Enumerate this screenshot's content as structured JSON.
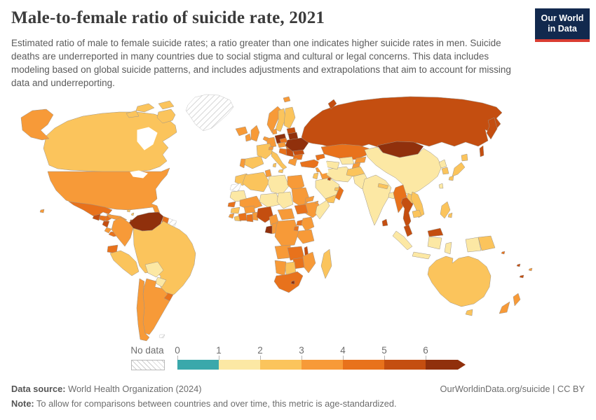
{
  "header": {
    "title": "Male-to-female ratio of suicide rate, 2021",
    "subtitle": "Estimated ratio of male to female suicide rates; a ratio greater than one indicates higher suicide rates in men. Suicide deaths are underreported in many countries due to social stigma and cultural or legal concerns. This data includes modeling based on global suicide patterns, and includes adjustments and extrapolations that aim to account for missing data and underreporting.",
    "logo": {
      "line1": "Our World",
      "line2": "in Data",
      "bg_color": "#12294e",
      "accent_color": "#d93d32"
    }
  },
  "legend": {
    "no_data_label": "No data",
    "ticks": [
      "0",
      "1",
      "2",
      "3",
      "4",
      "5",
      "6"
    ],
    "colors": [
      "#3aa8ab",
      "#fce8a4",
      "#fbc45c",
      "#f79a38",
      "#e8721c",
      "#c44e10",
      "#90300c"
    ],
    "tick_color": "#6e6e6e"
  },
  "footer": {
    "source_label": "Data source:",
    "source_text": "World Health Organization (2024)",
    "link_text": "OurWorldinData.org/suicide | CC BY",
    "note_label": "Note:",
    "note_text": "To allow for comparisons between countries and over time, this metric is age-standardized."
  },
  "chart_data": {
    "type": "choropleth_map",
    "title": "Male-to-female ratio of suicide rate, 2021",
    "year": 2021,
    "unit": "ratio of male to female suicide rate",
    "bin_edges": [
      0,
      1,
      2,
      3,
      4,
      5,
      6
    ],
    "bin_labels": [
      "0-1",
      "1-2",
      "2-3",
      "3-4",
      "4-5",
      "5-6",
      "6+"
    ],
    "legend_no_data": "hatched",
    "regions": {
      "United States": 3,
      "Canada": 2,
      "Mexico": 4,
      "Guatemala": 5,
      "Honduras": 4,
      "Nicaragua": 5,
      "Costa Rica": 3,
      "Panama": 4,
      "Cuba": 3,
      "Jamaica": 2,
      "Haiti": 5,
      "Dominican Republic": 3,
      "Puerto Rico": 3,
      "Bahamas": 2,
      "Lesser Antilles": 5,
      "Trinidad and Tobago": 3,
      "Venezuela": 6,
      "Guyana": 4,
      "Colombia": 3,
      "Ecuador": 4,
      "Peru": 2,
      "Brazil": 2,
      "Bolivia": 1,
      "Paraguay": 1,
      "Uruguay": 4,
      "Argentina": 3,
      "Chile": 3,
      "Iceland": 3,
      "United Kingdom": 3,
      "Ireland": 3,
      "Norway": 3,
      "Sweden": 2,
      "Finland": 2,
      "Denmark": 3,
      "Baltic states": 5,
      "Poland": 6,
      "Germany": 3,
      "Netherlands and Belgium": 3,
      "France": 2,
      "Spain": 2,
      "Portugal": 3,
      "Italy": 2,
      "Switzerland": 3,
      "Czechia": 4,
      "Austria": 3,
      "Hungary": 4,
      "Croatia and Bosnia": 4,
      "Serbia": 5,
      "Romania": 5,
      "Bulgaria": 4,
      "Greece": 3,
      "Belarus": 6,
      "Ukraine": 6,
      "Russia": 5,
      "Kazakhstan": 4,
      "Caucasus": 4,
      "Turkey": 4,
      "Syria": 3,
      "Iraq": 3,
      "Jordan and Israel": 2,
      "Saudi Arabia": 1,
      "Kuwait": 5,
      "Yemen": 2,
      "Oman": 4,
      "United Arab Emirates": 2,
      "Iran": 1,
      "Turkmenistan": 1,
      "Uzbekistan": 1,
      "Kyrgyzstan": 3,
      "Tajikistan": 3,
      "Afghanistan": 2,
      "Pakistan": 1,
      "India": 1,
      "Nepal": 2,
      "Bangladesh": 1,
      "Sri Lanka": 5,
      "China": 1,
      "Mongolia": 6,
      "North Korea": 1,
      "South Korea": 2,
      "Japan": 2,
      "Taiwan": 1,
      "Myanmar": 4,
      "Thailand": 5,
      "Laos": 2,
      "Vietnam": 2,
      "Cambodia": 2,
      "Malaysia": 5,
      "Indonesia": 1,
      "Papua New Guinea": 2,
      "Philippines": 2,
      "Solomon Islands": 4,
      "Vanuatu": 5,
      "Fiji": 3,
      "New Caledonia": 5,
      "Australia": 2,
      "New Zealand": 3,
      "Morocco": 2,
      "Algeria": 2,
      "Tunisia": 3,
      "Libya": 1,
      "Egypt": 3,
      "Mauritania": 1,
      "Mali": 3,
      "Niger": 1,
      "Chad": 1,
      "Sudan": 3,
      "Eritrea": 3,
      "Ethiopia": 3,
      "Somalia": 1,
      "Djibouti": 3,
      "Senegal": 4,
      "Guinea": 2,
      "Sierra Leone": 3,
      "Liberia": 2,
      "Cote d'Ivoire": 4,
      "Burkina Faso": 3,
      "Ghana": 4,
      "Togo and Benin": 3,
      "Nigeria": 5,
      "Cameroon": 3,
      "Central African Republic": 3,
      "South Sudan": 4,
      "Uganda": 4,
      "Kenya": 3,
      "Gabon": 6,
      "Congo": 3,
      "DR Congo": 3,
      "Rwanda and Burundi": 4,
      "Tanzania": 3,
      "Angola": 3,
      "Zambia": 4,
      "Malawi": 5,
      "Mozambique": 3,
      "Zimbabwe": 4,
      "Botswana": 2,
      "Namibia": 3,
      "South Africa": 4,
      "Lesotho": 6,
      "Madagascar": 2,
      "Greenland": "no_data",
      "Western Sahara": "no_data",
      "Suriname and French Guiana": "no_data",
      "Falkland Islands": "no_data"
    }
  }
}
